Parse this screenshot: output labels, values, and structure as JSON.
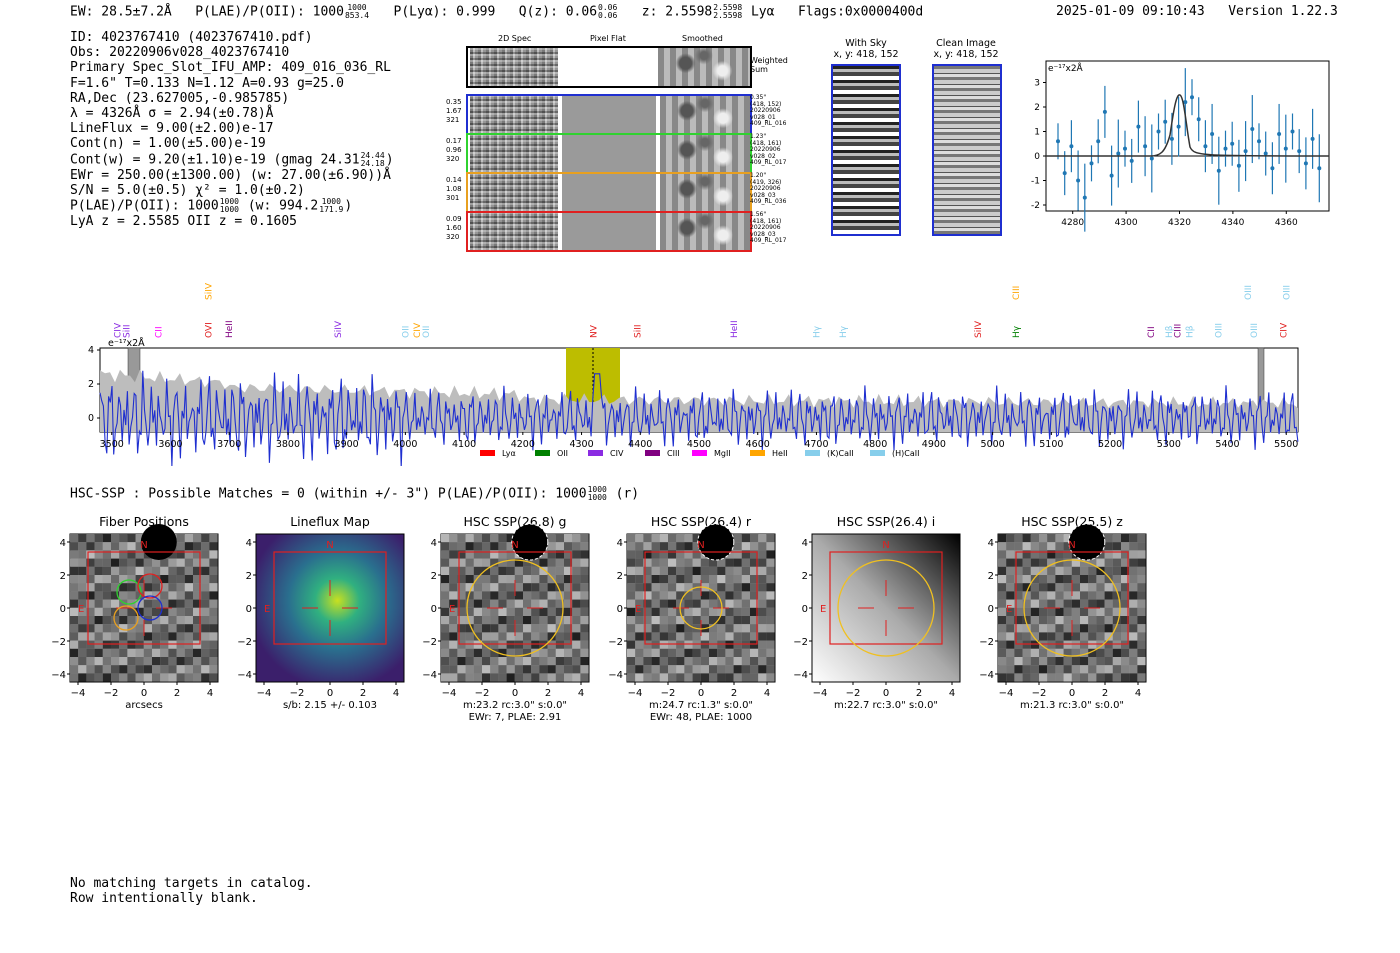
{
  "header": {
    "ew": "EW: 28.5±7.2Å",
    "plae_label": "P(LAE)/P(OII): 1000",
    "plae_hi": "1000",
    "plae_lo": "853.4",
    "plya": "P(Lyα): 0.999",
    "qz_label": "Q(z): 0.06",
    "qz_hi": "0.06",
    "qz_lo": "0.06",
    "z_label": "z: 2.5598",
    "z_hi": "2.5598",
    "z_lo": "2.5598",
    "z_line": "Lyα",
    "flags": "Flags:0x0000400d",
    "timestamp": "2025-01-09 09:10:43",
    "version": "Version 1.22.3"
  },
  "info": {
    "id": "ID: 4023767410 (4023767410.pdf)",
    "obs": "Obs: 20220906v028_4023767410",
    "primary": "Primary Spec_Slot_IFU_AMP: 409_016_036_RL",
    "fwhm": "F=1.6\"  T=0.133  N=1.12  A=0.93  g=25.0",
    "radec": "RA,Dec (23.627005,-0.985785)",
    "lambda": "λ = 4326Å  σ = 2.94(±0.78)Å",
    "lineflux": "LineFlux = 9.00(±2.00)e-17",
    "contn": "Cont(n) = 1.00(±5.00)e-19",
    "contw": "Cont(w) = 9.20(±1.10)e-19 (gmag 24.31",
    "contw_hi": "24.44",
    "contw_lo": "24.18",
    "ewr": "EWr = 250.00(±1300.00) (w: 27.00(±6.90))Å",
    "sn": "S/N = 5.0(±0.5)  χ² = 1.0(±0.2)",
    "plae": "P(LAE)/P(OII): 1000",
    "plae_hi": "1000",
    "plae_lo": "1000",
    "plae_w": "(w: 994.2",
    "plae_w_hi": "1000",
    "plae_w_lo": "171.9",
    "lya_z": "LyA z = 2.5585  OII z = 0.1605"
  },
  "cutouts": {
    "col_2d": "2D Spec",
    "col_flat": "Pixel Flat",
    "col_smooth": "Smoothed",
    "weighted": "Weighted Sum",
    "rows": [
      {
        "left": [
          "0.35",
          "1.67",
          "321"
        ],
        "right": [
          "0.35\"",
          "(418, 152)",
          "20220906",
          "v028_01",
          "409_RL_016"
        ],
        "color": "#1f2fd0"
      },
      {
        "left": [
          "0.17",
          "0.96",
          "320"
        ],
        "right": [
          "1.23\"",
          "(418, 161)",
          "20220906",
          "v028_02",
          "409_RL_017"
        ],
        "color": "#2fd22f"
      },
      {
        "left": [
          "0.14",
          "1.08",
          "301"
        ],
        "right": [
          "1.20\"",
          "(419, 326)",
          "20220906",
          "v028_03",
          "409_RL_036"
        ],
        "color": "#e8a020"
      },
      {
        "left": [
          "0.09",
          "1.60",
          "320"
        ],
        "right": [
          "1.56\"",
          "(418, 161)",
          "20220906",
          "v028_03",
          "409_RL_017"
        ],
        "color": "#e02020"
      }
    ]
  },
  "sky": {
    "with_sky_title": "With Sky",
    "with_sky_xy": "x, y: 418, 152",
    "clean_title": "Clean Image",
    "clean_xy": "x, y: 418, 152"
  },
  "zoom_plot": {
    "unit": "e⁻¹⁷x2Å",
    "x_ticks": [
      "4280",
      "4300",
      "4320",
      "4340",
      "4360"
    ],
    "y_ticks": [
      "3",
      "2",
      "1",
      "0",
      "-1",
      "-2"
    ]
  },
  "spectrum": {
    "unit": "e⁻¹⁷x2Å",
    "y_ticks": [
      "4",
      "2",
      "0"
    ],
    "x_ticks": [
      "3500",
      "3600",
      "3700",
      "3800",
      "3900",
      "4000",
      "4100",
      "4200",
      "4300",
      "4400",
      "4500",
      "4600",
      "4700",
      "4800",
      "4900",
      "5000",
      "5100",
      "5200",
      "5300",
      "5400",
      "5500"
    ],
    "line_labels": [
      {
        "text": "CIV",
        "color": "#8a2be2"
      },
      {
        "text": "SiII",
        "color": "#8a2be2"
      },
      {
        "text": "CII",
        "color": "#ff00ff"
      },
      {
        "text": "SiIV",
        "color": "#ffa500"
      },
      {
        "text": "OVI",
        "color": "#e02020"
      },
      {
        "text": "HeII",
        "color": "#800080"
      },
      {
        "text": "SiIV",
        "color": "#8a2be2"
      },
      {
        "text": "OII",
        "color": "#87ceeb"
      },
      {
        "text": "CIV",
        "color": "#ffa500"
      },
      {
        "text": "OII",
        "color": "#87ceeb"
      },
      {
        "text": "NV",
        "color": "#e02020"
      },
      {
        "text": "SiII",
        "color": "#e02020"
      },
      {
        "text": "HeII",
        "color": "#8a2be2"
      },
      {
        "text": "Hγ",
        "color": "#87ceeb"
      },
      {
        "text": "Hγ",
        "color": "#87ceeb"
      },
      {
        "text": "SiIV",
        "color": "#e02020"
      },
      {
        "text": "CIII",
        "color": "#ffa500"
      },
      {
        "text": "Hγ",
        "color": "#008000"
      },
      {
        "text": "CII",
        "color": "#800080"
      },
      {
        "text": "Hβ",
        "color": "#87ceeb"
      },
      {
        "text": "CIII",
        "color": "#800080"
      },
      {
        "text": "Hβ",
        "color": "#87ceeb"
      },
      {
        "text": "OIII",
        "color": "#87ceeb"
      },
      {
        "text": "OIII",
        "color": "#87ceeb"
      },
      {
        "text": "OIII",
        "color": "#87ceeb"
      },
      {
        "text": "CIV",
        "color": "#e02020"
      },
      {
        "text": "OIII",
        "color": "#87ceeb"
      }
    ],
    "legend": [
      {
        "label": "Lyα",
        "color": "#ff0000"
      },
      {
        "label": "OII",
        "color": "#008000"
      },
      {
        "label": "CIV",
        "color": "#8a2be2"
      },
      {
        "label": "CIII",
        "color": "#800080"
      },
      {
        "label": "MgII",
        "color": "#ff00ff"
      },
      {
        "label": "HeII",
        "color": "#ffa500"
      },
      {
        "label": "(K)CaII",
        "color": "#87ceeb"
      },
      {
        "label": "(H)CaII",
        "color": "#87ceeb"
      }
    ]
  },
  "hsc": {
    "summary": "HSC-SSP : Possible Matches = 0 (within +/- 3\")  P(LAE)/P(OII): 1000",
    "summary_hi": "1000",
    "summary_lo": "1000",
    "summary_suffix": "(r)",
    "axis_ticks": [
      "4",
      "2",
      "0",
      "−2",
      "−4"
    ],
    "x_ticks": [
      "−4",
      "−2",
      "0",
      "2",
      "4"
    ],
    "compass_n": "N",
    "compass_e": "E",
    "panels": [
      {
        "title": "Fiber Positions",
        "caption1": "arcsecs",
        "caption2": ""
      },
      {
        "title": "Lineflux Map",
        "caption1": "s/b: 2.15 +/- 0.103",
        "caption2": ""
      },
      {
        "title": "HSC SSP(26.8) g",
        "caption1": "m:23.2 rc:3.0\"  s:0.0\"",
        "caption2": "EWr: 7, PLAE: 2.91"
      },
      {
        "title": "HSC SSP(26.4) r",
        "caption1": "m:24.7 rc:1.3\"  s:0.0\"",
        "caption2": "EWr: 48, PLAE: 1000"
      },
      {
        "title": "HSC SSP(26.4) i",
        "caption1": "m:22.7 rc:3.0\"  s:0.0\"",
        "caption2": ""
      },
      {
        "title": "HSC SSP(25.5) z",
        "caption1": "m:21.3 rc:3.0\"  s:0.0\"",
        "caption2": ""
      }
    ]
  },
  "footer": {
    "line1": "No matching targets in catalog.",
    "line2": "Row intentionally blank."
  },
  "colors": {
    "blue": "#1f2fd0",
    "red": "#e02020",
    "highlight": "#bdbd00",
    "zoom_series": "#1f77b4"
  }
}
